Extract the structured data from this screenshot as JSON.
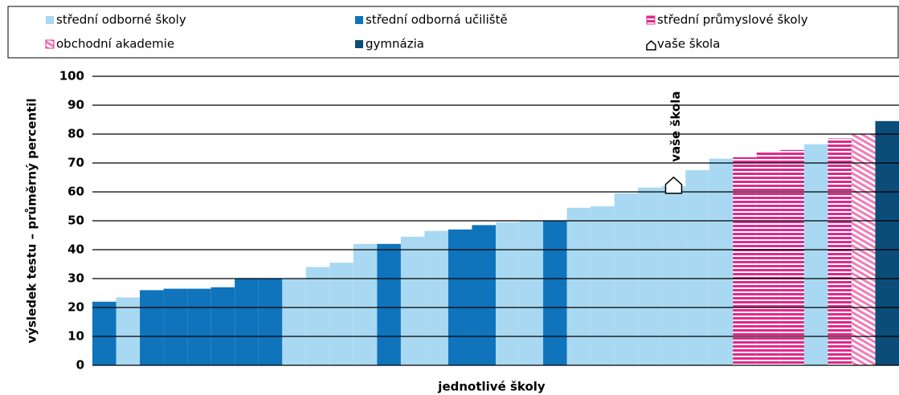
{
  "chart_data": {
    "type": "bar",
    "y_label": "výsledek testu – průměrný percentil",
    "x_label": "jednotlivé školy",
    "annotation": "vaše škola",
    "ylim": [
      0,
      100
    ],
    "yticks": [
      0,
      10,
      20,
      30,
      40,
      50,
      60,
      70,
      80,
      90,
      100
    ],
    "grid": true,
    "categories": [
      null,
      null,
      null,
      null,
      null,
      null,
      null,
      null,
      null,
      null,
      null,
      null,
      null,
      null,
      null,
      null,
      null,
      null,
      null,
      null,
      null,
      null,
      null,
      null,
      null,
      null,
      null,
      null,
      null,
      null,
      null,
      null,
      null,
      null
    ],
    "series": [
      {
        "name": "střední odborné školy",
        "color": "#a9d9f2",
        "pattern": "solid",
        "values": [
          null,
          23.5,
          null,
          null,
          null,
          null,
          null,
          null,
          30,
          34,
          35.5,
          42,
          null,
          44.5,
          46.5,
          null,
          null,
          49.5,
          50,
          null,
          54.5,
          55,
          59.5,
          61.5,
          62,
          67.5,
          71.5,
          null,
          null,
          null,
          76.5,
          null,
          null,
          null
        ]
      },
      {
        "name": "střední odborná učiliště",
        "color": "#0f74bc",
        "pattern": "solid",
        "values": [
          22,
          null,
          26,
          26.5,
          26.5,
          27,
          30,
          30,
          null,
          null,
          null,
          null,
          42,
          null,
          null,
          47,
          48.5,
          null,
          null,
          50,
          null,
          null,
          null,
          null,
          null,
          null,
          null,
          null,
          null,
          null,
          null,
          null,
          null,
          null
        ]
      },
      {
        "name": "střední průmyslové školy",
        "color": "#e0288b",
        "pattern": "horizontal",
        "values": [
          null,
          null,
          null,
          null,
          null,
          null,
          null,
          null,
          null,
          null,
          null,
          null,
          null,
          null,
          null,
          null,
          null,
          null,
          null,
          null,
          null,
          null,
          null,
          null,
          null,
          null,
          null,
          72,
          74,
          74.5,
          null,
          78.5,
          null,
          null
        ]
      },
      {
        "name": "obchodní akademie",
        "color": "#e0288b",
        "pattern": "diagonal",
        "values": [
          null,
          null,
          null,
          null,
          null,
          null,
          null,
          null,
          null,
          null,
          null,
          null,
          null,
          null,
          null,
          null,
          null,
          null,
          null,
          null,
          null,
          null,
          null,
          null,
          null,
          null,
          null,
          null,
          null,
          null,
          null,
          null,
          80,
          null
        ]
      },
      {
        "name": "gymnázia",
        "color": "#0b4d78",
        "pattern": "solid",
        "values": [
          null,
          null,
          null,
          null,
          null,
          null,
          null,
          null,
          null,
          null,
          null,
          null,
          null,
          null,
          null,
          null,
          null,
          null,
          null,
          null,
          null,
          null,
          null,
          null,
          null,
          null,
          null,
          null,
          null,
          null,
          null,
          null,
          null,
          84.5
        ]
      },
      {
        "name": "vaše škola",
        "color": "#000000",
        "pattern": "marker",
        "marker_index": 24
      }
    ]
  }
}
